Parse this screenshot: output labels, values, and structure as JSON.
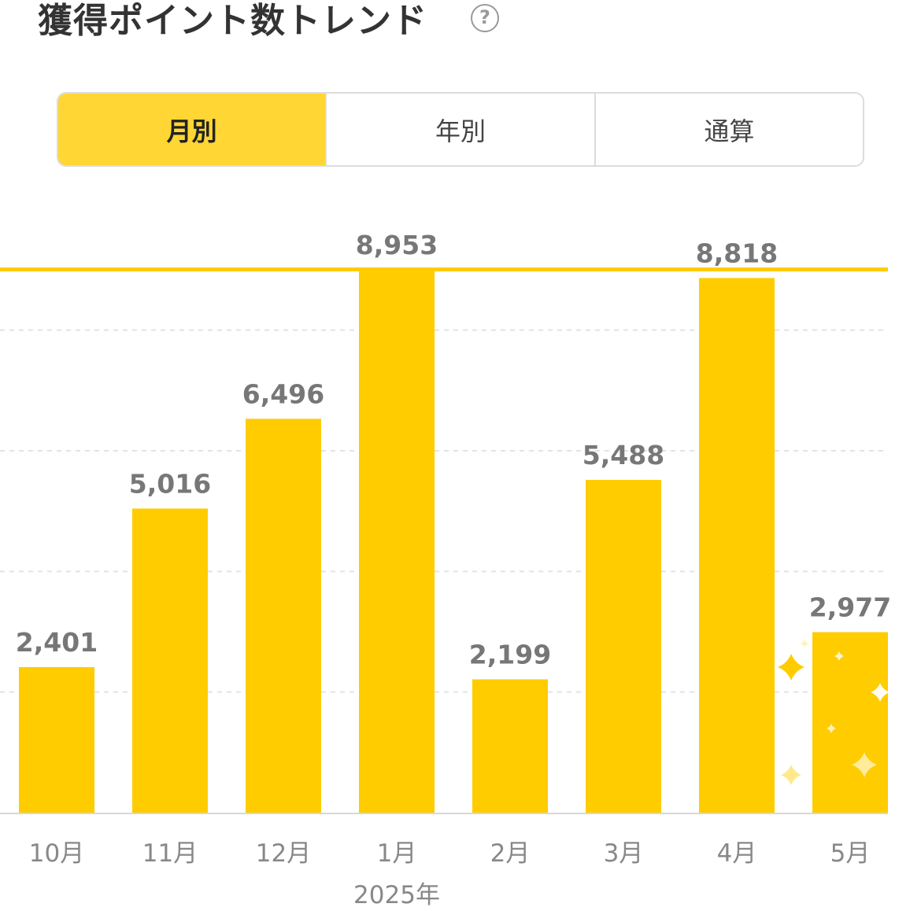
{
  "header": {
    "title": "獲得ポイント数トレンド",
    "help_icon": "?"
  },
  "tabs": [
    {
      "label": "月別",
      "active": true
    },
    {
      "label": "年別",
      "active": false
    },
    {
      "label": "通算",
      "active": false
    }
  ],
  "colors": {
    "bar": "#ffcc00",
    "max_line": "#ffcc00",
    "value_label": "#777777",
    "axis_label": "#888888",
    "grid": "#e3e3e3",
    "sparkle": "#ffcc00"
  },
  "chart_data": {
    "type": "bar",
    "categories": [
      "10月",
      "11月",
      "12月",
      "1月",
      "2月",
      "3月",
      "4月",
      "5月"
    ],
    "values": [
      2401,
      5016,
      6496,
      8953,
      2199,
      5488,
      8818,
      2977
    ],
    "value_labels": [
      "2,401",
      "5,016",
      "6,496",
      "8,953",
      "2,199",
      "5,488",
      "8,818",
      "2,977"
    ],
    "year_label": "2025年",
    "year_label_under": "1月",
    "max_line_value": 8953,
    "ylim": [
      0,
      8953
    ],
    "grid": true,
    "highlighted_category": "5月"
  }
}
